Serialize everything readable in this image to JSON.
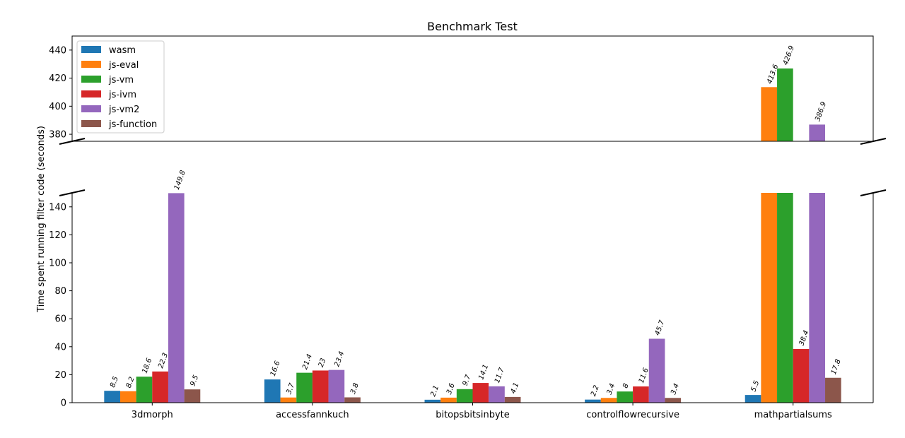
{
  "chart_data": {
    "type": "bar",
    "title": "Benchmark Test",
    "xlabel": "",
    "ylabel": "Time spent running filter code (seconds)",
    "categories": [
      "3dmorph",
      "accessfannkuch",
      "bitopsbitsinbyte",
      "controlflowrecursive",
      "mathpartialsums"
    ],
    "series": [
      {
        "name": "wasm",
        "color": "#1f77b4",
        "values": [
          8.5,
          16.6,
          2.1,
          2.2,
          5.5
        ]
      },
      {
        "name": "js-eval",
        "color": "#ff7f0e",
        "values": [
          8.2,
          3.7,
          3.6,
          3.4,
          413.6
        ]
      },
      {
        "name": "js-vm",
        "color": "#2ca02c",
        "values": [
          18.6,
          21.4,
          9.7,
          8,
          426.9
        ]
      },
      {
        "name": "js-ivm",
        "color": "#d62728",
        "values": [
          22.3,
          23,
          14.1,
          11.6,
          38.4
        ]
      },
      {
        "name": "js-vm2",
        "color": "#9467bd",
        "values": [
          149.8,
          23.4,
          11.7,
          45.7,
          386.9
        ]
      },
      {
        "name": "js-function",
        "color": "#8c564b",
        "values": [
          9.5,
          3.8,
          4.1,
          3.4,
          17.8
        ]
      }
    ],
    "broken_axis": {
      "lower_ylim": [
        0,
        150
      ],
      "upper_ylim": [
        375,
        450
      ],
      "lower_ticks": [
        0,
        20,
        40,
        60,
        80,
        100,
        120,
        140
      ],
      "upper_ticks": [
        380,
        400,
        420,
        440
      ]
    },
    "legend_position": "upper-left",
    "grid": false
  }
}
